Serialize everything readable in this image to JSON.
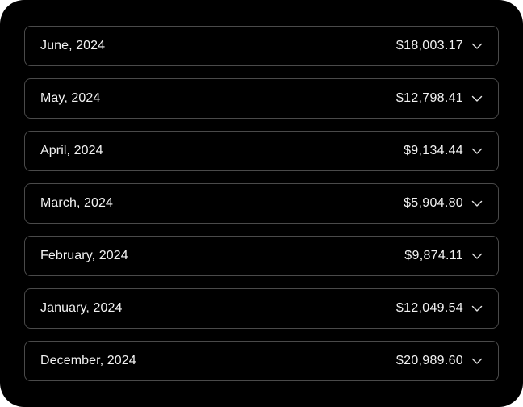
{
  "months": [
    {
      "label": "June, 2024",
      "amount": "$18,003.17",
      "icon": "chevron-down-icon"
    },
    {
      "label": "May, 2024",
      "amount": "$12,798.41",
      "icon": "chevron-down-icon"
    },
    {
      "label": "April, 2024",
      "amount": "$9,134.44",
      "icon": "chevron-down-icon"
    },
    {
      "label": "March, 2024",
      "amount": "$5,904.80",
      "icon": "chevron-down-icon"
    },
    {
      "label": "February, 2024",
      "amount": "$9,874.11",
      "icon": "chevron-down-icon"
    },
    {
      "label": "January, 2024",
      "amount": "$12,049.54",
      "icon": "chevron-down-icon"
    },
    {
      "label": "December, 2024",
      "amount": "$20,989.60",
      "icon": "chevron-down-icon"
    }
  ],
  "colors": {
    "background": "#000000",
    "border": "#4a4a4a",
    "text": "#f2f2f2"
  }
}
